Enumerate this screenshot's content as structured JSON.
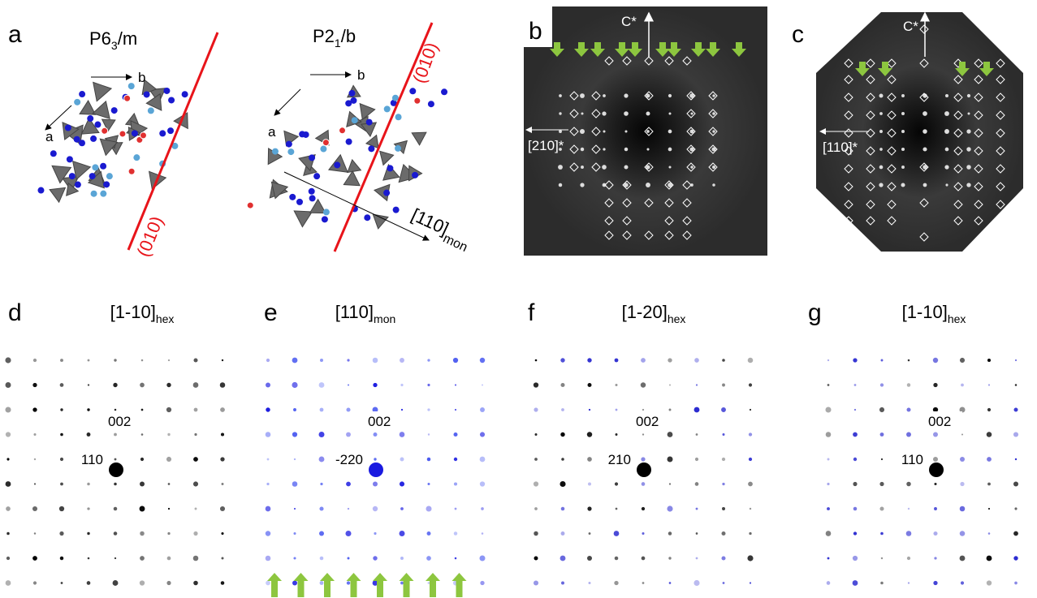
{
  "panels": {
    "a": {
      "label": "a",
      "left": {
        "title": {
          "base": "P6",
          "sub": "3",
          "rest": "/m"
        },
        "axis_b": "b",
        "axis_a": "a",
        "plane": "(010)"
      },
      "right": {
        "title": {
          "base": "P2",
          "sub": "1",
          "rest": "/b"
        },
        "axis_b": "b",
        "axis_a": "a",
        "plane": "(010)",
        "direction": {
          "base": "[110]",
          "sub": "mon"
        }
      }
    },
    "b": {
      "label": "b",
      "vertical": "C*",
      "horizontal": "[210]*"
    },
    "c": {
      "label": "c",
      "vertical": "C*",
      "horizontal": "[110]*"
    },
    "d": {
      "label": "d",
      "title": {
        "base": "[1-10]",
        "sub": "hex"
      },
      "upper_spot": "002",
      "center_spot": "110"
    },
    "e": {
      "label": "e",
      "title": {
        "base": "[110]",
        "sub": "mon"
      },
      "upper_spot": "002",
      "center_spot": "-220"
    },
    "f": {
      "label": "f",
      "title": {
        "base": "[1-20]",
        "sub": "hex"
      },
      "upper_spot": "002",
      "center_spot": "210"
    },
    "g": {
      "label": "g",
      "title": {
        "base": "[1-10]",
        "sub": "hex"
      },
      "upper_spot": "002",
      "center_spot": "110"
    }
  }
}
